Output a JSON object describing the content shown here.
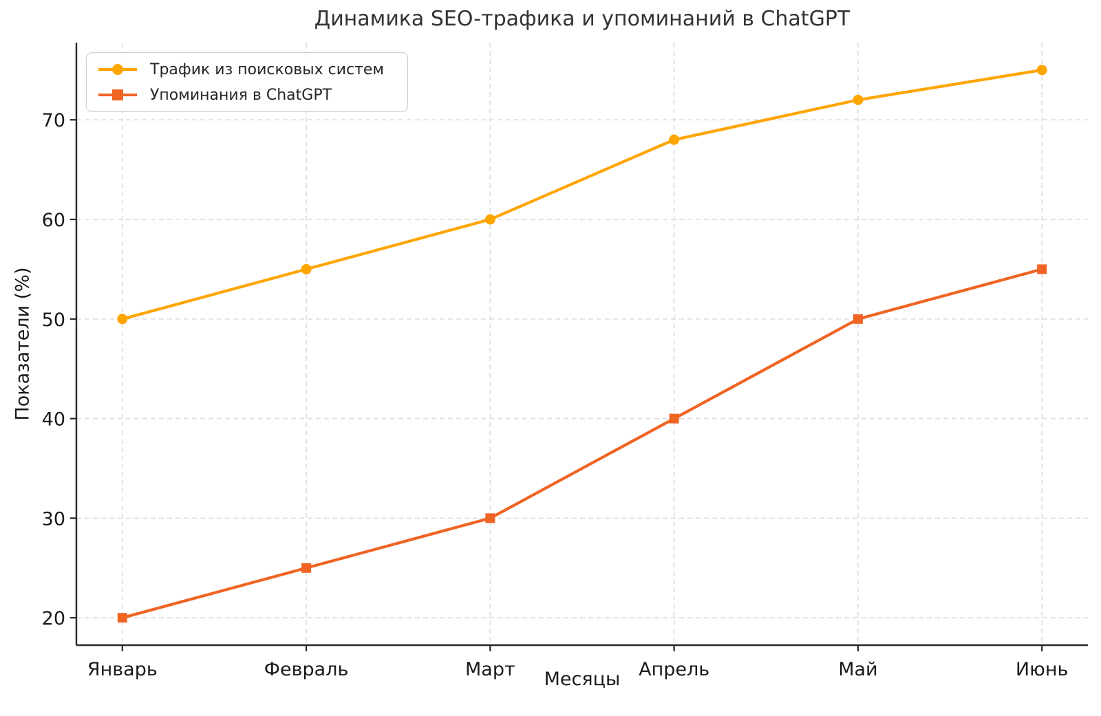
{
  "chart_data": {
    "type": "line",
    "title": "Динамика SEO-трафика и упоминаний в ChatGPT",
    "xlabel": "Месяцы",
    "ylabel": "Показатели (%)",
    "categories": [
      "Январь",
      "Февраль",
      "Март",
      "Апрель",
      "Май",
      "Июнь"
    ],
    "series": [
      {
        "name": "Трафик из поисковых систем",
        "values": [
          50,
          55,
          60,
          68,
          72,
          75
        ],
        "color": "#FFA500",
        "marker": "circle"
      },
      {
        "name": "Упоминания в ChatGPT",
        "values": [
          20,
          25,
          30,
          40,
          50,
          55
        ],
        "color": "#F06424",
        "marker": "square"
      }
    ],
    "yticks": [
      20,
      30,
      40,
      50,
      60,
      70
    ],
    "ylim": [
      17.25,
      77.75
    ],
    "xlim_index": [
      -0.25,
      5.25
    ],
    "grid": true,
    "grid_style": "dashed",
    "legend_position": "upper left",
    "colors": {
      "grid": "#dcdcdc",
      "spine": "#262626",
      "tick_text": "#1a1a1a",
      "title_text": "#333333"
    }
  }
}
